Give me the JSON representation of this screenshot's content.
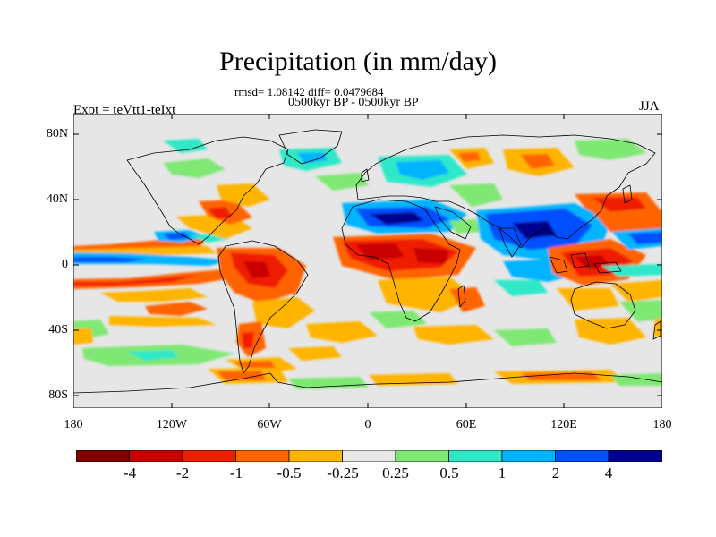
{
  "title": "Precipitation (in mm/day)",
  "stats": "rmsd= 1.08142 diff= 0.0479684",
  "period": "0500kyr BP - 0500kyr BP",
  "experiment": "Expt = teVtt1-teIxt",
  "season": "JJA",
  "map": {
    "lat_ticks": [
      "80N",
      "40N",
      "0",
      "40S",
      "80S"
    ],
    "lon_ticks": [
      "180",
      "120W",
      "60W",
      "0",
      "60E",
      "120E",
      "180"
    ],
    "background_color": "#e6e6e6",
    "coast_color": "#000000"
  },
  "colorbar": {
    "colors": [
      "#800000",
      "#c80000",
      "#f01e00",
      "#ff6400",
      "#ffb400",
      "#e6e6e6",
      "#7fe873",
      "#2ee8c8",
      "#00b4ff",
      "#0050ff",
      "#000090"
    ],
    "labels": [
      "-4",
      "-2",
      "-1",
      "-0.5",
      "-0.25",
      "0.25",
      "0.5",
      "1",
      "2",
      "4"
    ]
  }
}
